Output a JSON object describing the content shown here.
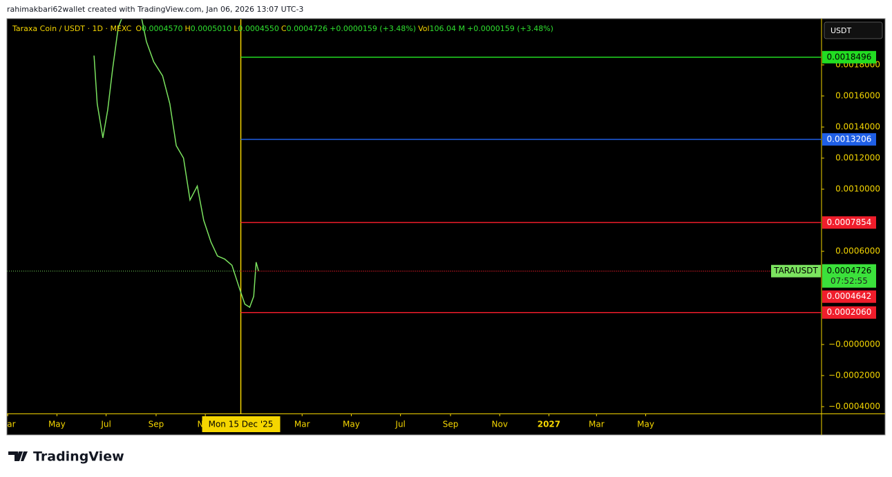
{
  "header": "rahimakbari62wallet created with TradingView.com, Jan 06, 2026 13:07 UTC-3",
  "footer": "TradingView",
  "chart_data": {
    "type": "line",
    "legend": {
      "symbol": "Taraxa Coin / USDT · 1D · MEXC",
      "items": [
        "O",
        "0.0004570",
        "H",
        "0.0005010",
        "L",
        "0.0004550",
        "C",
        "0.0004726",
        "+0.0000159 (+3.48%)",
        "Vol",
        "106.04 M",
        "+0.0000159 (+3.48%)"
      ]
    },
    "currency": "USDT",
    "symbol_tag": "TARAUSDT",
    "countdown": "07:52:55",
    "x": [
      "2025-06-16",
      "2025-06-20",
      "2025-06-27",
      "2025-07-03",
      "2025-07-09",
      "2025-07-16",
      "2025-07-28",
      "2025-08-10",
      "2025-08-20",
      "2025-08-29",
      "2025-09-09",
      "2025-09-18",
      "2025-09-26",
      "2025-10-05",
      "2025-10-13",
      "2025-10-22",
      "2025-10-30",
      "2025-11-08",
      "2025-11-16",
      "2025-11-25",
      "2025-12-04",
      "2025-12-14",
      "2025-12-20",
      "2025-12-26",
      "2025-12-31",
      "2026-01-03",
      "2026-01-06"
    ],
    "series": [
      {
        "name": "TARAUSDT",
        "color": "#7be35f",
        "values": [
          0.00186,
          0.00155,
          0.00133,
          0.00151,
          0.00177,
          0.00204,
          0.0022,
          0.0022,
          0.00195,
          0.00182,
          0.00173,
          0.00155,
          0.00128,
          0.0012,
          0.00093,
          0.00102,
          0.0008,
          0.00066,
          0.00057,
          0.00055,
          0.00051,
          0.00035,
          0.00026,
          0.00024,
          0.00031,
          0.00053,
          0.0004726
        ]
      }
    ],
    "levels": {
      "values": [
        0.0018496,
        0.0013206,
        0.0007854,
        0.000206
      ],
      "value_labels": [
        "0.0018496",
        "0.0013206",
        "0.0007854",
        "0.0002060"
      ],
      "colors": [
        "#22dd22",
        "#1f5fe6",
        "#f01d2b",
        "#f01d2b"
      ]
    },
    "extra_price": 0.0004642,
    "crosshair": {
      "x": "2025-12-15",
      "label": "Mon 15 Dec '25",
      "color": "#f5d600"
    },
    "xlim": [
      "2025-02-28",
      "2027-12-05"
    ],
    "xticks": [
      {
        "value": "2025-03-01",
        "label": "Mar"
      },
      {
        "value": "2025-05-01",
        "label": "May"
      },
      {
        "value": "2025-07-01",
        "label": "Jul"
      },
      {
        "value": "2025-09-01",
        "label": "Sep"
      },
      {
        "value": "2025-11-01",
        "label": "Nov"
      },
      {
        "value": "2026-03-01",
        "label": "Mar"
      },
      {
        "value": "2026-05-01",
        "label": "May"
      },
      {
        "value": "2026-07-01",
        "label": "Jul"
      },
      {
        "value": "2026-09-01",
        "label": "Sep"
      },
      {
        "value": "2026-11-01",
        "label": "Nov"
      },
      {
        "value": "2027-01-01",
        "label": "2027"
      },
      {
        "value": "2027-03-01",
        "label": "Mar"
      },
      {
        "value": "2027-05-01",
        "label": "May"
      }
    ],
    "ylim": [
      -0.000444,
      0.0020933
    ],
    "yticks": [
      {
        "value": 0.0018,
        "label": "0.0018000"
      },
      {
        "value": 0.0016,
        "label": "0.0016000"
      },
      {
        "value": 0.0014,
        "label": "0.0014000"
      },
      {
        "value": 0.0012,
        "label": "0.0012000"
      },
      {
        "value": 0.001,
        "label": "0.0010000"
      },
      {
        "value": 0.0006,
        "label": "0.0006000"
      },
      {
        "value": 0,
        "label": "−0.0000000"
      },
      {
        "value": -0.0002,
        "label": "−0.0002000"
      },
      {
        "value": -0.0004,
        "label": "−0.0004000"
      }
    ],
    "grid": false,
    "axis_color": "#f5d600"
  }
}
